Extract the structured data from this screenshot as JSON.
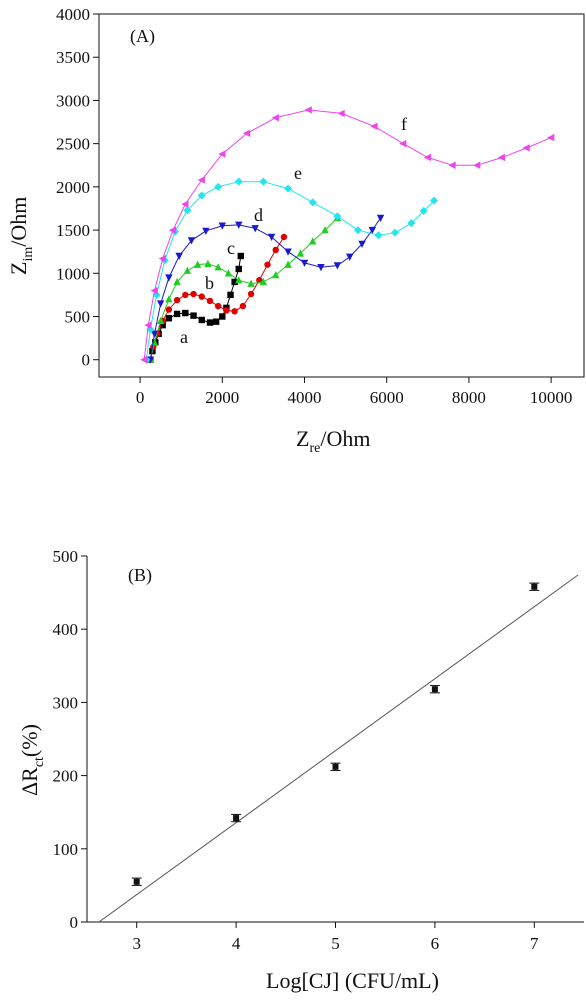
{
  "chart_data": [
    {
      "type": "scatter",
      "panel_label": "(A)",
      "xlabel": "Z",
      "xlabel_sub": "re",
      "xlabel_rest": "/Ohm",
      "ylabel": "Z",
      "ylabel_sub": "im",
      "ylabel_rest": "/Ohm",
      "xlim": [
        -1000,
        10800
      ],
      "ylim": [
        -200,
        4000
      ],
      "xticks": [
        "0",
        "2000",
        "4000",
        "6000",
        "8000",
        "10000"
      ],
      "yticks": [
        "0",
        "500",
        "1000",
        "1500",
        "2000",
        "2500",
        "3000",
        "3500",
        "4000"
      ],
      "series": [
        {
          "name": "a",
          "color": "#000000",
          "marker": "square",
          "x": [
            250,
            300,
            370,
            450,
            550,
            700,
            900,
            1100,
            1300,
            1500,
            1700,
            1850,
            2000,
            2100,
            2200,
            2300,
            2400,
            2450
          ],
          "y": [
            0,
            100,
            200,
            300,
            400,
            480,
            530,
            540,
            510,
            460,
            430,
            440,
            500,
            600,
            750,
            900,
            1050,
            1200
          ]
        },
        {
          "name": "b",
          "color": "#e00000",
          "marker": "circle",
          "x": [
            250,
            320,
            420,
            550,
            700,
            900,
            1100,
            1300,
            1500,
            1700,
            1900,
            2100,
            2300,
            2500,
            2700,
            2900,
            3100,
            3300,
            3500
          ],
          "y": [
            0,
            150,
            300,
            450,
            580,
            690,
            750,
            760,
            730,
            680,
            620,
            570,
            560,
            620,
            760,
            920,
            1100,
            1270,
            1420
          ]
        },
        {
          "name": "c",
          "color": "#22cc22",
          "marker": "triangle-up",
          "x": [
            250,
            350,
            500,
            700,
            900,
            1150,
            1400,
            1650,
            1900,
            2150,
            2400,
            2700,
            3000,
            3300,
            3600,
            3900,
            4200,
            4500,
            4800
          ],
          "y": [
            0,
            200,
            450,
            700,
            900,
            1030,
            1100,
            1110,
            1070,
            1000,
            920,
            880,
            900,
            980,
            1100,
            1230,
            1370,
            1500,
            1640
          ]
        },
        {
          "name": "d",
          "color": "#1a1acc",
          "marker": "triangle-down",
          "x": [
            250,
            350,
            500,
            700,
            950,
            1250,
            1600,
            2000,
            2400,
            2800,
            3200,
            3600,
            4000,
            4400,
            4800,
            5100,
            5400,
            5650,
            5850
          ],
          "y": [
            0,
            300,
            650,
            950,
            1200,
            1380,
            1490,
            1550,
            1560,
            1520,
            1420,
            1250,
            1120,
            1070,
            1090,
            1190,
            1340,
            1500,
            1640
          ]
        },
        {
          "name": "e",
          "color": "#22e5ee",
          "marker": "diamond",
          "x": [
            150,
            250,
            400,
            600,
            850,
            1150,
            1500,
            1900,
            2400,
            3000,
            3600,
            4200,
            4800,
            5300,
            5800,
            6200,
            6600,
            6900,
            7150
          ],
          "y": [
            0,
            350,
            750,
            1150,
            1480,
            1730,
            1900,
            2000,
            2060,
            2060,
            1980,
            1820,
            1660,
            1500,
            1440,
            1470,
            1580,
            1720,
            1840
          ]
        },
        {
          "name": "f",
          "color": "#ee44ee",
          "marker": "triangle-left",
          "x": [
            100,
            200,
            350,
            550,
            800,
            1100,
            1500,
            2000,
            2600,
            3300,
            4100,
            4900,
            5700,
            6400,
            7000,
            7600,
            8200,
            8800,
            9400,
            10000
          ],
          "y": [
            0,
            400,
            800,
            1170,
            1500,
            1800,
            2080,
            2380,
            2620,
            2800,
            2890,
            2850,
            2700,
            2500,
            2340,
            2250,
            2250,
            2340,
            2450,
            2570
          ]
        }
      ]
    },
    {
      "type": "scatter",
      "panel_label": "(B)",
      "xlabel": "Log[CJ] (CFU/mL)",
      "ylabel": "ΔR",
      "ylabel_sub": "ct",
      "ylabel_rest": "(%)",
      "xlim": [
        2.5,
        7.5
      ],
      "ylim": [
        0,
        500
      ],
      "xticks": [
        "3",
        "4",
        "5",
        "6",
        "7"
      ],
      "yticks": [
        "0",
        "100",
        "200",
        "300",
        "400",
        "500"
      ],
      "points": {
        "x": [
          3,
          4,
          5,
          6,
          7
        ],
        "y": [
          55,
          142,
          212,
          318,
          458
        ],
        "err": [
          5,
          5,
          5,
          5,
          5
        ]
      },
      "fit_line": {
        "x": [
          2.62,
          7.44
        ],
        "y": [
          0,
          474
        ]
      }
    }
  ],
  "colors": {
    "axis": "#111111",
    "fit": "#555555",
    "points_b": "#111111"
  }
}
